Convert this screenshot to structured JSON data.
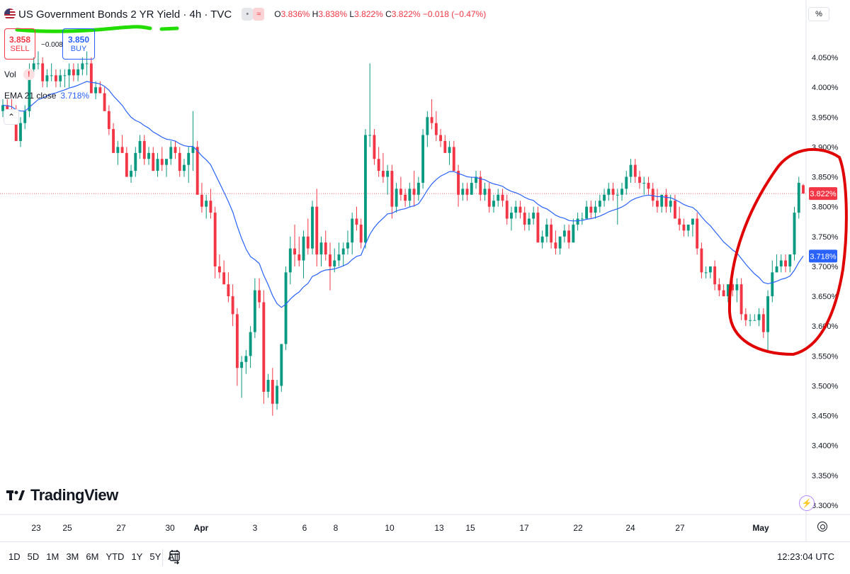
{
  "legend": {
    "symbol": "US Government Bonds 2 YR Yield · 4h · TVC",
    "ohlc_open_label": "O",
    "ohlc_open": "3.836%",
    "ohlc_high_label": "H",
    "ohlc_high": "3.838%",
    "ohlc_low_label": "L",
    "ohlc_low": "3.822%",
    "ohlc_close_label": "C",
    "ohlc_close": "3.822%",
    "change": "−0.018 (−0.47%)"
  },
  "trade": {
    "sell_price": "3.858",
    "sell_label": "SELL",
    "spread": "−0.008",
    "buy_price": "3.850",
    "buy_label": "BUY"
  },
  "indicators": {
    "vol_label": "Vol",
    "ema_label": "EMA 21 close",
    "ema_value": "3.718%"
  },
  "price_axis": {
    "mode_label": "%",
    "last_price_tag": "3.822%",
    "ema_tag": "3.718%"
  },
  "time_axis_labels": [
    "23",
    "25",
    "27",
    "30",
    "Apr",
    "3",
    "6",
    "8",
    "10",
    "13",
    "15",
    "17",
    "22",
    "24",
    "27",
    "May"
  ],
  "bottom_toolbar": {
    "timeframes": [
      "1D",
      "5D",
      "1M",
      "3M",
      "6M",
      "YTD",
      "1Y",
      "5Y",
      "All"
    ],
    "clock": "12:23:04 UTC"
  },
  "branding": {
    "logo_text": "TradingView"
  },
  "colors": {
    "up": "#089981",
    "down": "#f23645",
    "ema": "#2962ff",
    "annotation_green": "#22dd00",
    "annotation_red": "#e00000"
  },
  "chart_data": {
    "type": "candlestick",
    "title": "US Government Bonds 2 YR Yield · 4h · TVC",
    "y_unit": "%",
    "ylim": [
      3.28,
      4.09
    ],
    "y_ticks": [
      3.3,
      3.35,
      3.4,
      3.45,
      3.5,
      3.55,
      3.6,
      3.65,
      3.7,
      3.75,
      3.8,
      3.85,
      3.9,
      3.95,
      4.0,
      4.05
    ],
    "grid": false,
    "candles_ohlc": [
      [
        3.96,
        3.98,
        3.95,
        3.97
      ],
      [
        3.97,
        3.98,
        3.95,
        3.96
      ],
      [
        3.96,
        3.98,
        3.94,
        3.95
      ],
      [
        3.95,
        3.97,
        3.92,
        3.91
      ],
      [
        3.91,
        3.95,
        3.9,
        3.94
      ],
      [
        3.94,
        3.97,
        3.93,
        3.96
      ],
      [
        3.96,
        4.04,
        3.95,
        4.03
      ],
      [
        4.03,
        4.05,
        4.02,
        4.04
      ],
      [
        4.04,
        4.06,
        4.03,
        4.04
      ],
      [
        4.04,
        4.05,
        4.0,
        4.01
      ],
      [
        4.01,
        4.03,
        4.0,
        4.02
      ],
      [
        4.02,
        4.04,
        4.01,
        4.02
      ],
      [
        4.02,
        4.03,
        4.0,
        4.01
      ],
      [
        4.01,
        4.03,
        4.0,
        4.02
      ],
      [
        4.02,
        4.03,
        4.0,
        4.02
      ],
      [
        4.02,
        4.04,
        4.0,
        4.03
      ],
      [
        4.03,
        4.04,
        4.01,
        4.02
      ],
      [
        4.02,
        4.04,
        4.01,
        4.03
      ],
      [
        4.03,
        4.05,
        4.02,
        4.04
      ],
      [
        4.04,
        4.06,
        4.02,
        4.04
      ],
      [
        4.04,
        4.05,
        3.99,
        3.99
      ],
      [
        3.99,
        4.01,
        3.98,
        4.0
      ],
      [
        4.0,
        4.01,
        3.99,
        3.99
      ],
      [
        3.99,
        4.0,
        3.97,
        3.96
      ],
      [
        3.96,
        3.97,
        3.92,
        3.93
      ],
      [
        3.93,
        3.94,
        3.89,
        3.89
      ],
      [
        3.89,
        3.91,
        3.87,
        3.9
      ],
      [
        3.9,
        3.92,
        3.89,
        3.89
      ],
      [
        3.89,
        3.9,
        3.85,
        3.85
      ],
      [
        3.85,
        3.87,
        3.84,
        3.86
      ],
      [
        3.86,
        3.9,
        3.85,
        3.89
      ],
      [
        3.89,
        3.92,
        3.88,
        3.91
      ],
      [
        3.91,
        3.92,
        3.87,
        3.88
      ],
      [
        3.88,
        3.9,
        3.87,
        3.89
      ],
      [
        3.89,
        3.9,
        3.86,
        3.86
      ],
      [
        3.86,
        3.89,
        3.85,
        3.88
      ],
      [
        3.88,
        3.9,
        3.86,
        3.87
      ],
      [
        3.87,
        3.88,
        3.85,
        3.88
      ],
      [
        3.88,
        3.91,
        3.87,
        3.9
      ],
      [
        3.9,
        3.91,
        3.88,
        3.89
      ],
      [
        3.89,
        3.9,
        3.85,
        3.86
      ],
      [
        3.86,
        3.88,
        3.85,
        3.87
      ],
      [
        3.87,
        3.9,
        3.84,
        3.89
      ],
      [
        3.89,
        3.96,
        3.86,
        3.9
      ],
      [
        3.9,
        3.91,
        3.82,
        3.82
      ],
      [
        3.82,
        3.84,
        3.79,
        3.8
      ],
      [
        3.8,
        3.82,
        3.78,
        3.81
      ],
      [
        3.81,
        3.83,
        3.78,
        3.79
      ],
      [
        3.79,
        3.8,
        3.68,
        3.7
      ],
      [
        3.7,
        3.72,
        3.68,
        3.69
      ],
      [
        3.69,
        3.71,
        3.67,
        3.67
      ],
      [
        3.67,
        3.69,
        3.64,
        3.65
      ],
      [
        3.65,
        3.67,
        3.6,
        3.62
      ],
      [
        3.62,
        3.63,
        3.5,
        3.53
      ],
      [
        3.53,
        3.55,
        3.48,
        3.54
      ],
      [
        3.54,
        3.56,
        3.52,
        3.55
      ],
      [
        3.55,
        3.6,
        3.53,
        3.59
      ],
      [
        3.59,
        3.68,
        3.58,
        3.66
      ],
      [
        3.66,
        3.68,
        3.63,
        3.64
      ],
      [
        3.64,
        3.66,
        3.47,
        3.49
      ],
      [
        3.49,
        3.52,
        3.48,
        3.51
      ],
      [
        3.51,
        3.53,
        3.45,
        3.47
      ],
      [
        3.47,
        3.51,
        3.46,
        3.5
      ],
      [
        3.5,
        3.57,
        3.49,
        3.57
      ],
      [
        3.57,
        3.7,
        3.56,
        3.69
      ],
      [
        3.69,
        3.75,
        3.67,
        3.73
      ],
      [
        3.73,
        3.77,
        3.7,
        3.72
      ],
      [
        3.72,
        3.75,
        3.7,
        3.71
      ],
      [
        3.71,
        3.76,
        3.68,
        3.75
      ],
      [
        3.75,
        3.78,
        3.72,
        3.73
      ],
      [
        3.73,
        3.81,
        3.72,
        3.8
      ],
      [
        3.8,
        3.83,
        3.7,
        3.72
      ],
      [
        3.72,
        3.75,
        3.7,
        3.74
      ],
      [
        3.74,
        3.76,
        3.71,
        3.72
      ],
      [
        3.72,
        3.74,
        3.66,
        3.7
      ],
      [
        3.7,
        3.73,
        3.69,
        3.71
      ],
      [
        3.71,
        3.74,
        3.7,
        3.72
      ],
      [
        3.72,
        3.74,
        3.7,
        3.73
      ],
      [
        3.73,
        3.76,
        3.72,
        3.74
      ],
      [
        3.74,
        3.79,
        3.72,
        3.78
      ],
      [
        3.78,
        3.8,
        3.76,
        3.77
      ],
      [
        3.77,
        3.78,
        3.73,
        3.74
      ],
      [
        3.74,
        3.93,
        3.73,
        3.92
      ],
      [
        3.92,
        4.04,
        3.9,
        3.92
      ],
      [
        3.92,
        3.93,
        3.87,
        3.88
      ],
      [
        3.88,
        3.9,
        3.85,
        3.86
      ],
      [
        3.86,
        3.89,
        3.84,
        3.85
      ],
      [
        3.85,
        3.87,
        3.82,
        3.86
      ],
      [
        3.86,
        3.87,
        3.78,
        3.8
      ],
      [
        3.8,
        3.84,
        3.79,
        3.83
      ],
      [
        3.83,
        3.85,
        3.81,
        3.82
      ],
      [
        3.82,
        3.83,
        3.8,
        3.81
      ],
      [
        3.81,
        3.84,
        3.8,
        3.83
      ],
      [
        3.83,
        3.86,
        3.8,
        3.82
      ],
      [
        3.82,
        3.85,
        3.81,
        3.84
      ],
      [
        3.84,
        3.93,
        3.83,
        3.92
      ],
      [
        3.92,
        3.96,
        3.9,
        3.95
      ],
      [
        3.95,
        3.98,
        3.93,
        3.94
      ],
      [
        3.94,
        3.96,
        3.91,
        3.92
      ],
      [
        3.92,
        3.93,
        3.9,
        3.91
      ],
      [
        3.91,
        3.92,
        3.89,
        3.89
      ],
      [
        3.89,
        3.91,
        3.87,
        3.9
      ],
      [
        3.9,
        3.91,
        3.86,
        3.86
      ],
      [
        3.86,
        3.87,
        3.8,
        3.82
      ],
      [
        3.82,
        3.84,
        3.81,
        3.83
      ],
      [
        3.83,
        3.84,
        3.81,
        3.82
      ],
      [
        3.82,
        3.85,
        3.82,
        3.84
      ],
      [
        3.84,
        3.86,
        3.83,
        3.85
      ],
      [
        3.85,
        3.86,
        3.81,
        3.82
      ],
      [
        3.82,
        3.84,
        3.81,
        3.83
      ],
      [
        3.83,
        3.84,
        3.79,
        3.8
      ],
      [
        3.8,
        3.82,
        3.79,
        3.81
      ],
      [
        3.81,
        3.83,
        3.8,
        3.82
      ],
      [
        3.82,
        3.83,
        3.8,
        3.81
      ],
      [
        3.81,
        3.82,
        3.77,
        3.78
      ],
      [
        3.78,
        3.8,
        3.76,
        3.79
      ],
      [
        3.79,
        3.81,
        3.78,
        3.8
      ],
      [
        3.8,
        3.81,
        3.78,
        3.79
      ],
      [
        3.79,
        3.8,
        3.76,
        3.77
      ],
      [
        3.77,
        3.79,
        3.76,
        3.78
      ],
      [
        3.78,
        3.8,
        3.77,
        3.79
      ],
      [
        3.79,
        3.8,
        3.74,
        3.74
      ],
      [
        3.74,
        3.76,
        3.73,
        3.75
      ],
      [
        3.75,
        3.78,
        3.74,
        3.77
      ],
      [
        3.77,
        3.78,
        3.73,
        3.74
      ],
      [
        3.74,
        3.76,
        3.72,
        3.73
      ],
      [
        3.73,
        3.75,
        3.72,
        3.75
      ],
      [
        3.75,
        3.77,
        3.74,
        3.76
      ],
      [
        3.76,
        3.77,
        3.73,
        3.74
      ],
      [
        3.74,
        3.78,
        3.74,
        3.77
      ],
      [
        3.77,
        3.79,
        3.76,
        3.78
      ],
      [
        3.78,
        3.79,
        3.77,
        3.78
      ],
      [
        3.78,
        3.81,
        3.78,
        3.8
      ],
      [
        3.8,
        3.81,
        3.78,
        3.79
      ],
      [
        3.79,
        3.81,
        3.78,
        3.8
      ],
      [
        3.8,
        3.82,
        3.79,
        3.81
      ],
      [
        3.81,
        3.83,
        3.8,
        3.82
      ],
      [
        3.82,
        3.84,
        3.81,
        3.83
      ],
      [
        3.83,
        3.84,
        3.81,
        3.82
      ],
      [
        3.82,
        3.83,
        3.77,
        3.82
      ],
      [
        3.82,
        3.84,
        3.81,
        3.83
      ],
      [
        3.83,
        3.86,
        3.82,
        3.85
      ],
      [
        3.85,
        3.88,
        3.84,
        3.87
      ],
      [
        3.87,
        3.88,
        3.84,
        3.85
      ],
      [
        3.85,
        3.86,
        3.83,
        3.84
      ],
      [
        3.84,
        3.85,
        3.82,
        3.84
      ],
      [
        3.84,
        3.85,
        3.82,
        3.83
      ],
      [
        3.83,
        3.84,
        3.8,
        3.81
      ],
      [
        3.81,
        3.83,
        3.79,
        3.8
      ],
      [
        3.8,
        3.82,
        3.79,
        3.82
      ],
      [
        3.82,
        3.83,
        3.79,
        3.8
      ],
      [
        3.8,
        3.82,
        3.79,
        3.81
      ],
      [
        3.81,
        3.82,
        3.78,
        3.78
      ],
      [
        3.78,
        3.8,
        3.76,
        3.77
      ],
      [
        3.77,
        3.78,
        3.75,
        3.76
      ],
      [
        3.76,
        3.77,
        3.75,
        3.77
      ],
      [
        3.77,
        3.78,
        3.75,
        3.78
      ],
      [
        3.78,
        3.79,
        3.72,
        3.73
      ],
      [
        3.73,
        3.74,
        3.68,
        3.69
      ],
      [
        3.69,
        3.7,
        3.68,
        3.69
      ],
      [
        3.69,
        3.7,
        3.68,
        3.7
      ],
      [
        3.7,
        3.71,
        3.66,
        3.67
      ],
      [
        3.67,
        3.68,
        3.65,
        3.66
      ],
      [
        3.66,
        3.67,
        3.65,
        3.65
      ],
      [
        3.65,
        3.67,
        3.64,
        3.67
      ],
      [
        3.67,
        3.68,
        3.65,
        3.66
      ],
      [
        3.66,
        3.68,
        3.64,
        3.67
      ],
      [
        3.67,
        3.68,
        3.61,
        3.62
      ],
      [
        3.62,
        3.63,
        3.6,
        3.61
      ],
      [
        3.61,
        3.62,
        3.6,
        3.61
      ],
      [
        3.61,
        3.62,
        3.61,
        3.61
      ],
      [
        3.61,
        3.63,
        3.6,
        3.62
      ],
      [
        3.62,
        3.63,
        3.58,
        3.59
      ],
      [
        3.59,
        3.66,
        3.56,
        3.65
      ],
      [
        3.65,
        3.71,
        3.64,
        3.69
      ],
      [
        3.69,
        3.72,
        3.69,
        3.7
      ],
      [
        3.7,
        3.72,
        3.69,
        3.71
      ],
      [
        3.71,
        3.72,
        3.69,
        3.7
      ],
      [
        3.7,
        3.72,
        3.69,
        3.72
      ],
      [
        3.72,
        3.8,
        3.71,
        3.79
      ],
      [
        3.79,
        3.85,
        3.78,
        3.84
      ],
      [
        3.836,
        3.838,
        3.822,
        3.822
      ]
    ]
  }
}
